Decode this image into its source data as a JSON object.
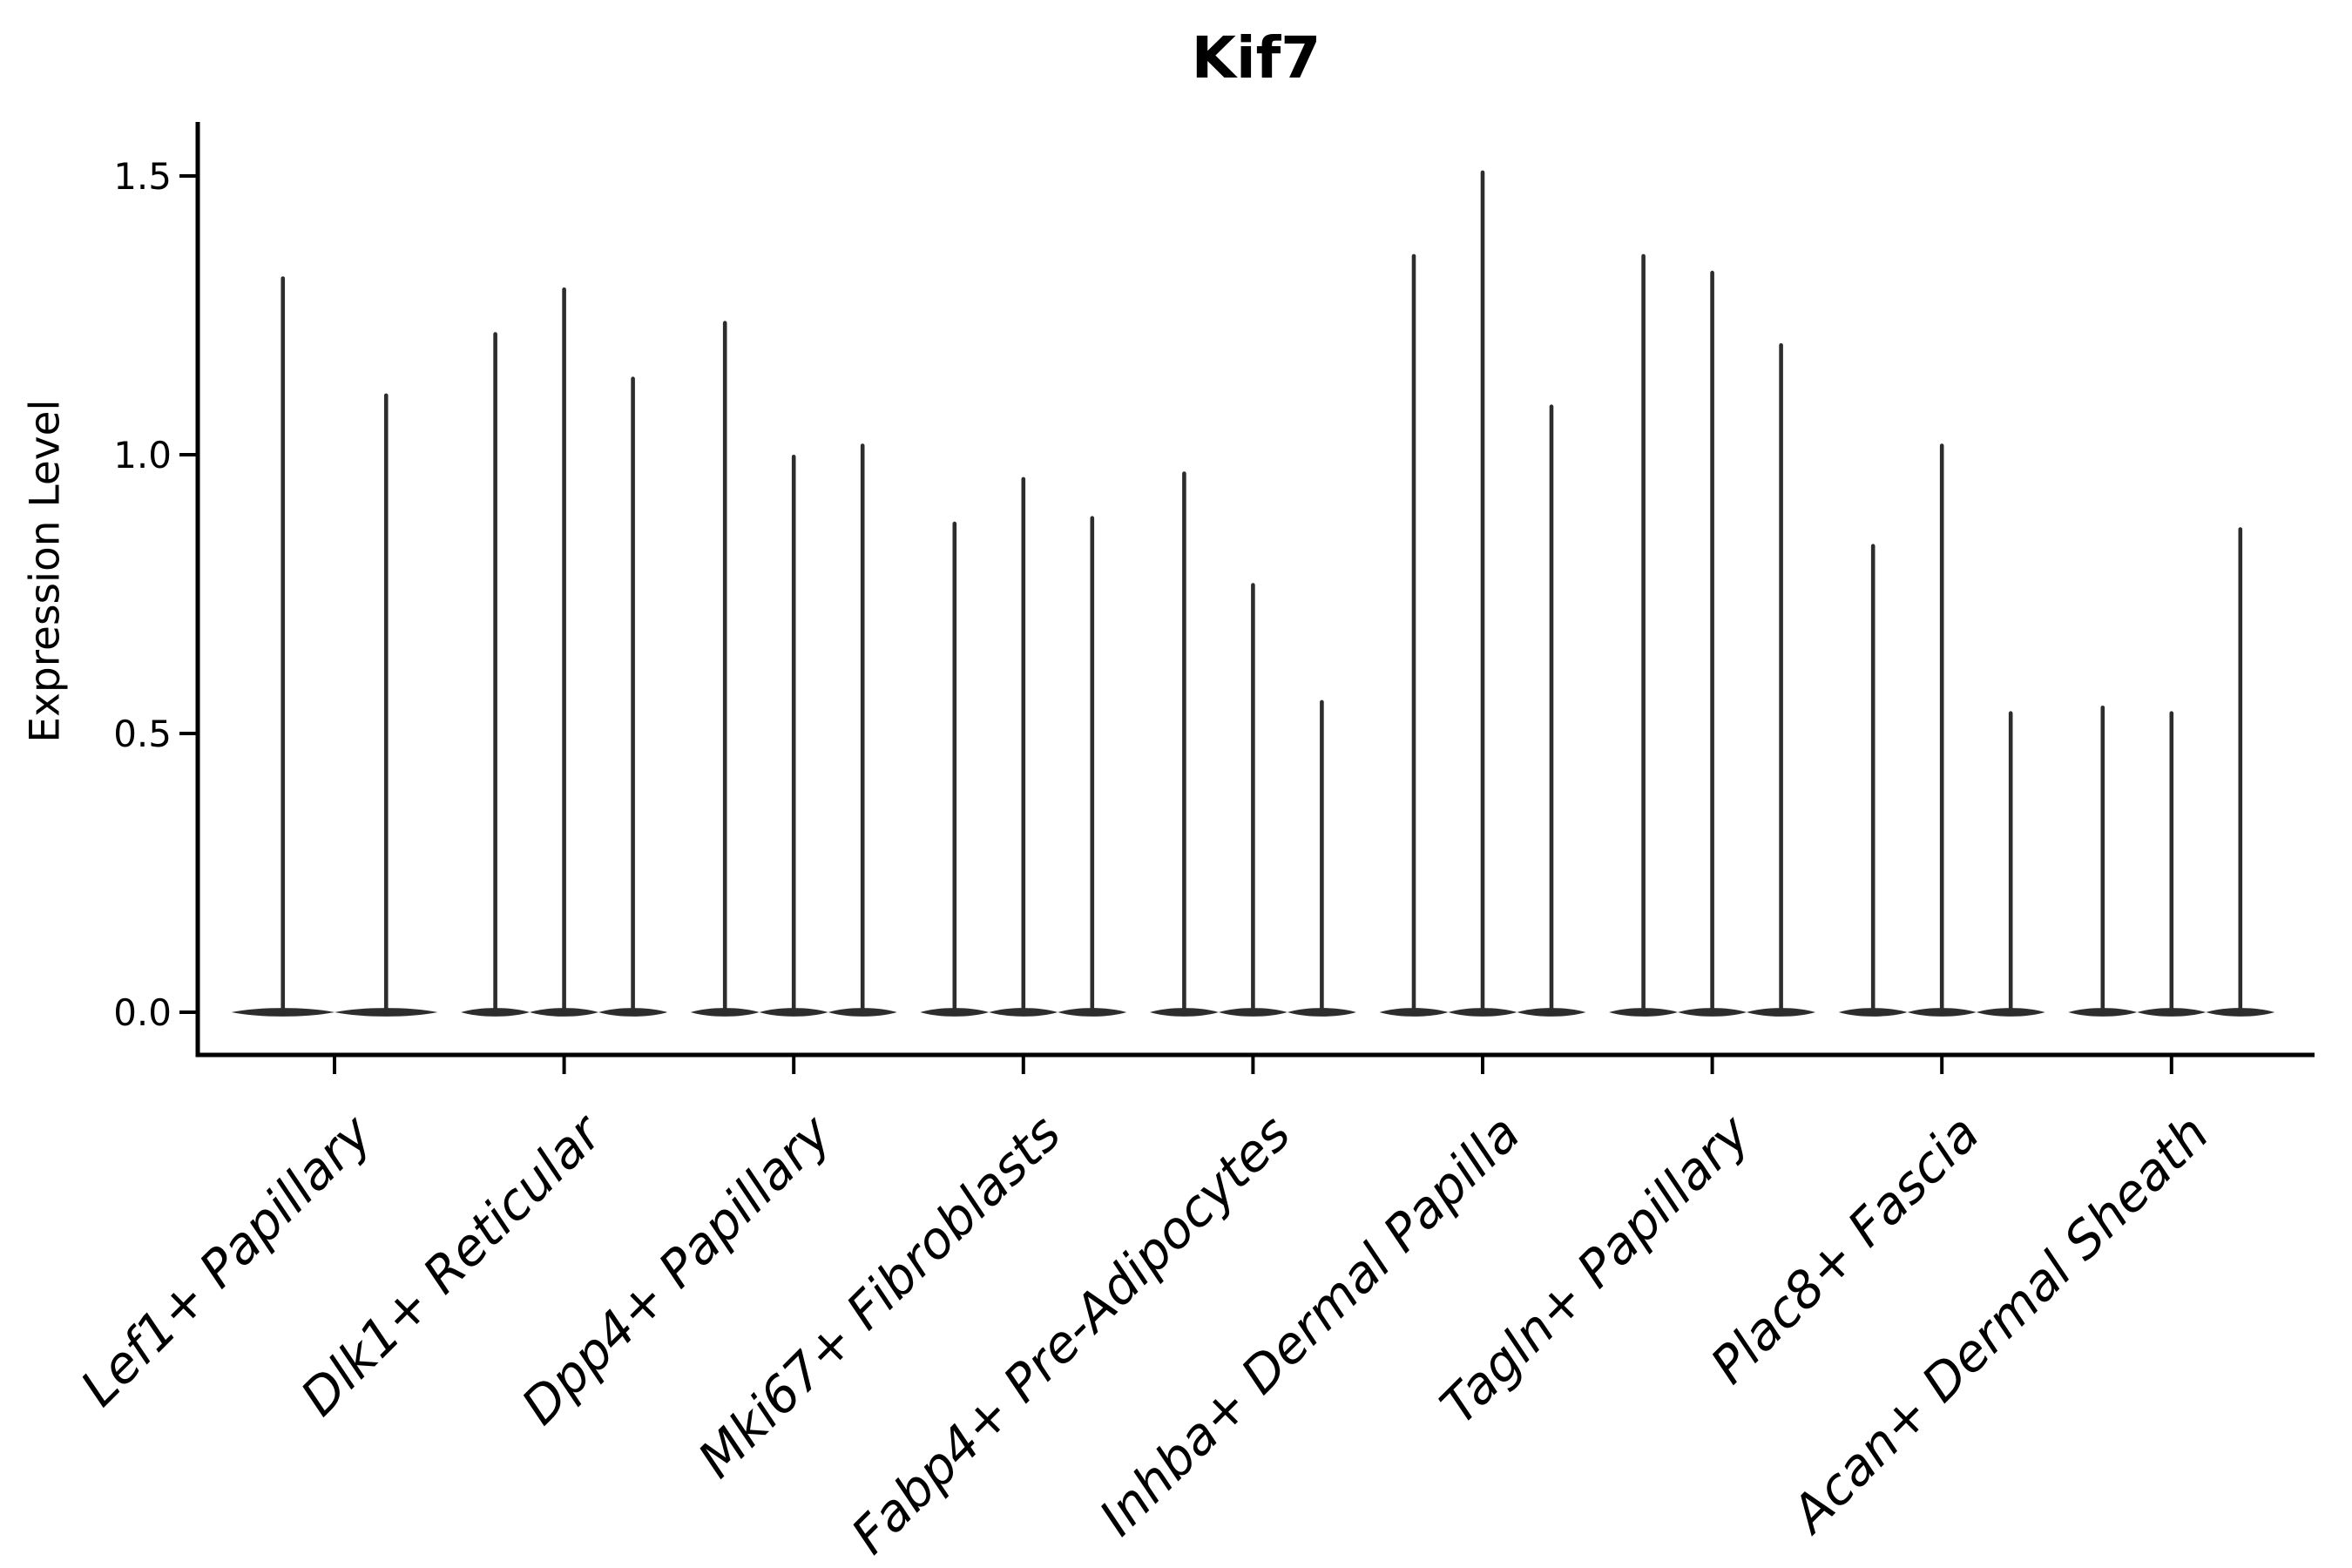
{
  "chart_data": {
    "type": "violin",
    "title": "Kif7",
    "ylabel": "Expression Level",
    "xlabel": "",
    "yticks": [
      {
        "label": "0.0",
        "value": 0.0
      },
      {
        "label": "0.5",
        "value": 0.5
      },
      {
        "label": "1.0",
        "value": 1.0
      },
      {
        "label": "1.5",
        "value": 1.5
      }
    ],
    "ylim": [
      -0.07,
      1.6
    ],
    "grid": false,
    "legend": false,
    "baseline_value": 0.0,
    "groups": [
      {
        "category": "Lef1+ Papillary",
        "violin_peaks": [
          1.32,
          1.11
        ]
      },
      {
        "category": "Dlk1+ Reticular",
        "violin_peaks": [
          1.22,
          1.3,
          1.14
        ]
      },
      {
        "category": "Dpp4+ Papillary",
        "violin_peaks": [
          1.24,
          1.0,
          1.02
        ]
      },
      {
        "category": "Mki67+ Fibroblasts",
        "violin_peaks": [
          0.88,
          0.96,
          0.89
        ]
      },
      {
        "category": "Fabp4+ Pre-Adipocytes",
        "violin_peaks": [
          0.97,
          0.77,
          0.56
        ]
      },
      {
        "category": "Inhba+ Dermal Papilla",
        "violin_peaks": [
          1.36,
          1.51,
          1.09
        ]
      },
      {
        "category": "Tagln+ Papillary",
        "violin_peaks": [
          1.36,
          1.33,
          1.2
        ]
      },
      {
        "category": "Plac8+ Fascia",
        "violin_peaks": [
          0.84,
          1.02,
          0.54
        ]
      },
      {
        "category": "Acan+ Dermal Sheath",
        "violin_peaks": [
          0.55,
          0.54,
          0.87
        ]
      }
    ],
    "colors": {
      "violin_fill": "#2d2d2d",
      "axis": "#000000",
      "text": "#000000",
      "background": "#ffffff"
    }
  }
}
